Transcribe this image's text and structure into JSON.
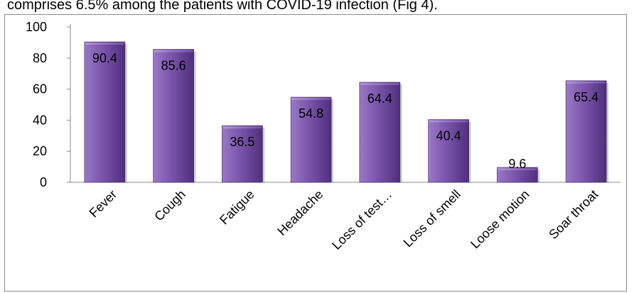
{
  "caption": {
    "text": "comprises 6.5% among the patients with COVID-19 infection (Fig 4)."
  },
  "chart_data": {
    "type": "bar",
    "title": "",
    "xlabel": "",
    "ylabel": "",
    "categories": [
      "Fever",
      "Cough",
      "Fatigue",
      "Headache",
      "Loss of test…",
      "Loss of smell",
      "Loose motion",
      "Soar throat"
    ],
    "values": [
      90.4,
      85.6,
      36.5,
      54.8,
      64.4,
      40.4,
      9.6,
      65.4
    ],
    "data_labels": [
      "90.4",
      "85.6",
      "36.5",
      "54.8",
      "64.4",
      "40.4",
      "9.6",
      "65.4"
    ],
    "ylim": [
      0,
      100
    ],
    "yticks": [
      0,
      20,
      40,
      60,
      80,
      100
    ],
    "ytick_labels": [
      "0",
      "20",
      "40",
      "60",
      "80",
      "100"
    ],
    "grid": false,
    "legend": "none",
    "colors": {
      "bar_light": "#9a78c6",
      "bar_mid": "#7a54ab",
      "bar_dark": "#4f2f7c",
      "bar_top": "#b49ad6"
    }
  }
}
